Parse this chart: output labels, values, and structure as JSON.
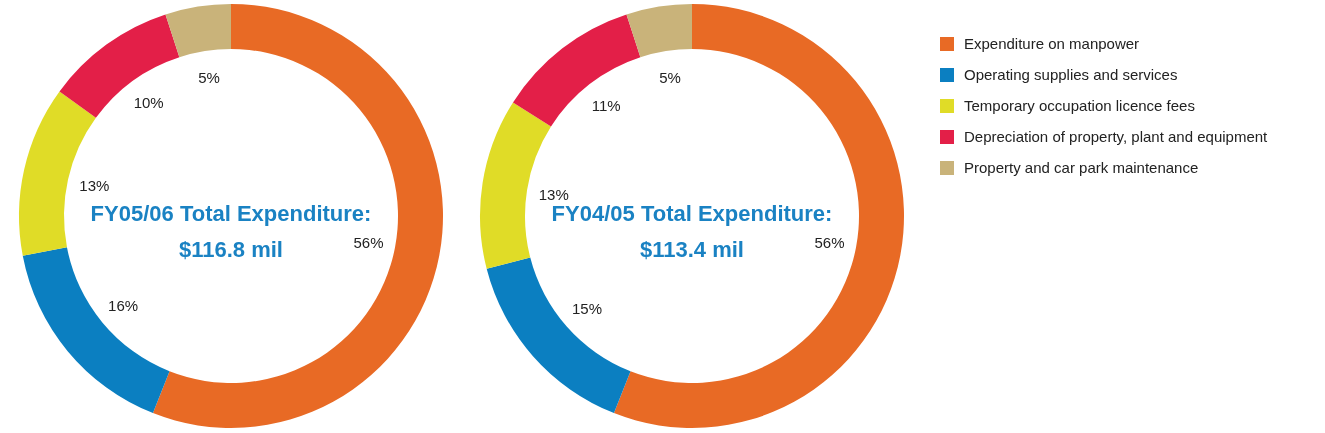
{
  "chart_data": [
    {
      "type": "donut",
      "title": "FY05/06 Total Expenditure:",
      "subtitle": "$116.8 mil",
      "categories": [
        null,
        null,
        null,
        null,
        null
      ],
      "values": [
        56,
        16,
        13,
        10,
        5
      ],
      "value_labels": [
        "56%",
        "16%",
        "13%",
        "10%",
        "5%"
      ],
      "colors": [
        "#e86a25",
        "#0b7fc1",
        "#e0dc27",
        "#e31f48",
        "#c9b37a"
      ],
      "legend": false
    },
    {
      "type": "donut",
      "title": "FY04/05 Total Expenditure:",
      "subtitle": "$113.4 mil",
      "categories": [
        "Expenditure on manpower",
        "Operating supplies and services",
        "Temporary occupation licence fees",
        "Depreciation of property, plant and equipment",
        "Property and car park maintenance"
      ],
      "values": [
        56,
        15,
        13,
        11,
        5
      ],
      "value_labels": [
        "56%",
        "15%",
        "13%",
        "11%",
        "5%"
      ],
      "colors": [
        "#e86a25",
        "#0b7fc1",
        "#e0dc27",
        "#e31f48",
        "#c9b37a"
      ],
      "legend": "right"
    }
  ]
}
